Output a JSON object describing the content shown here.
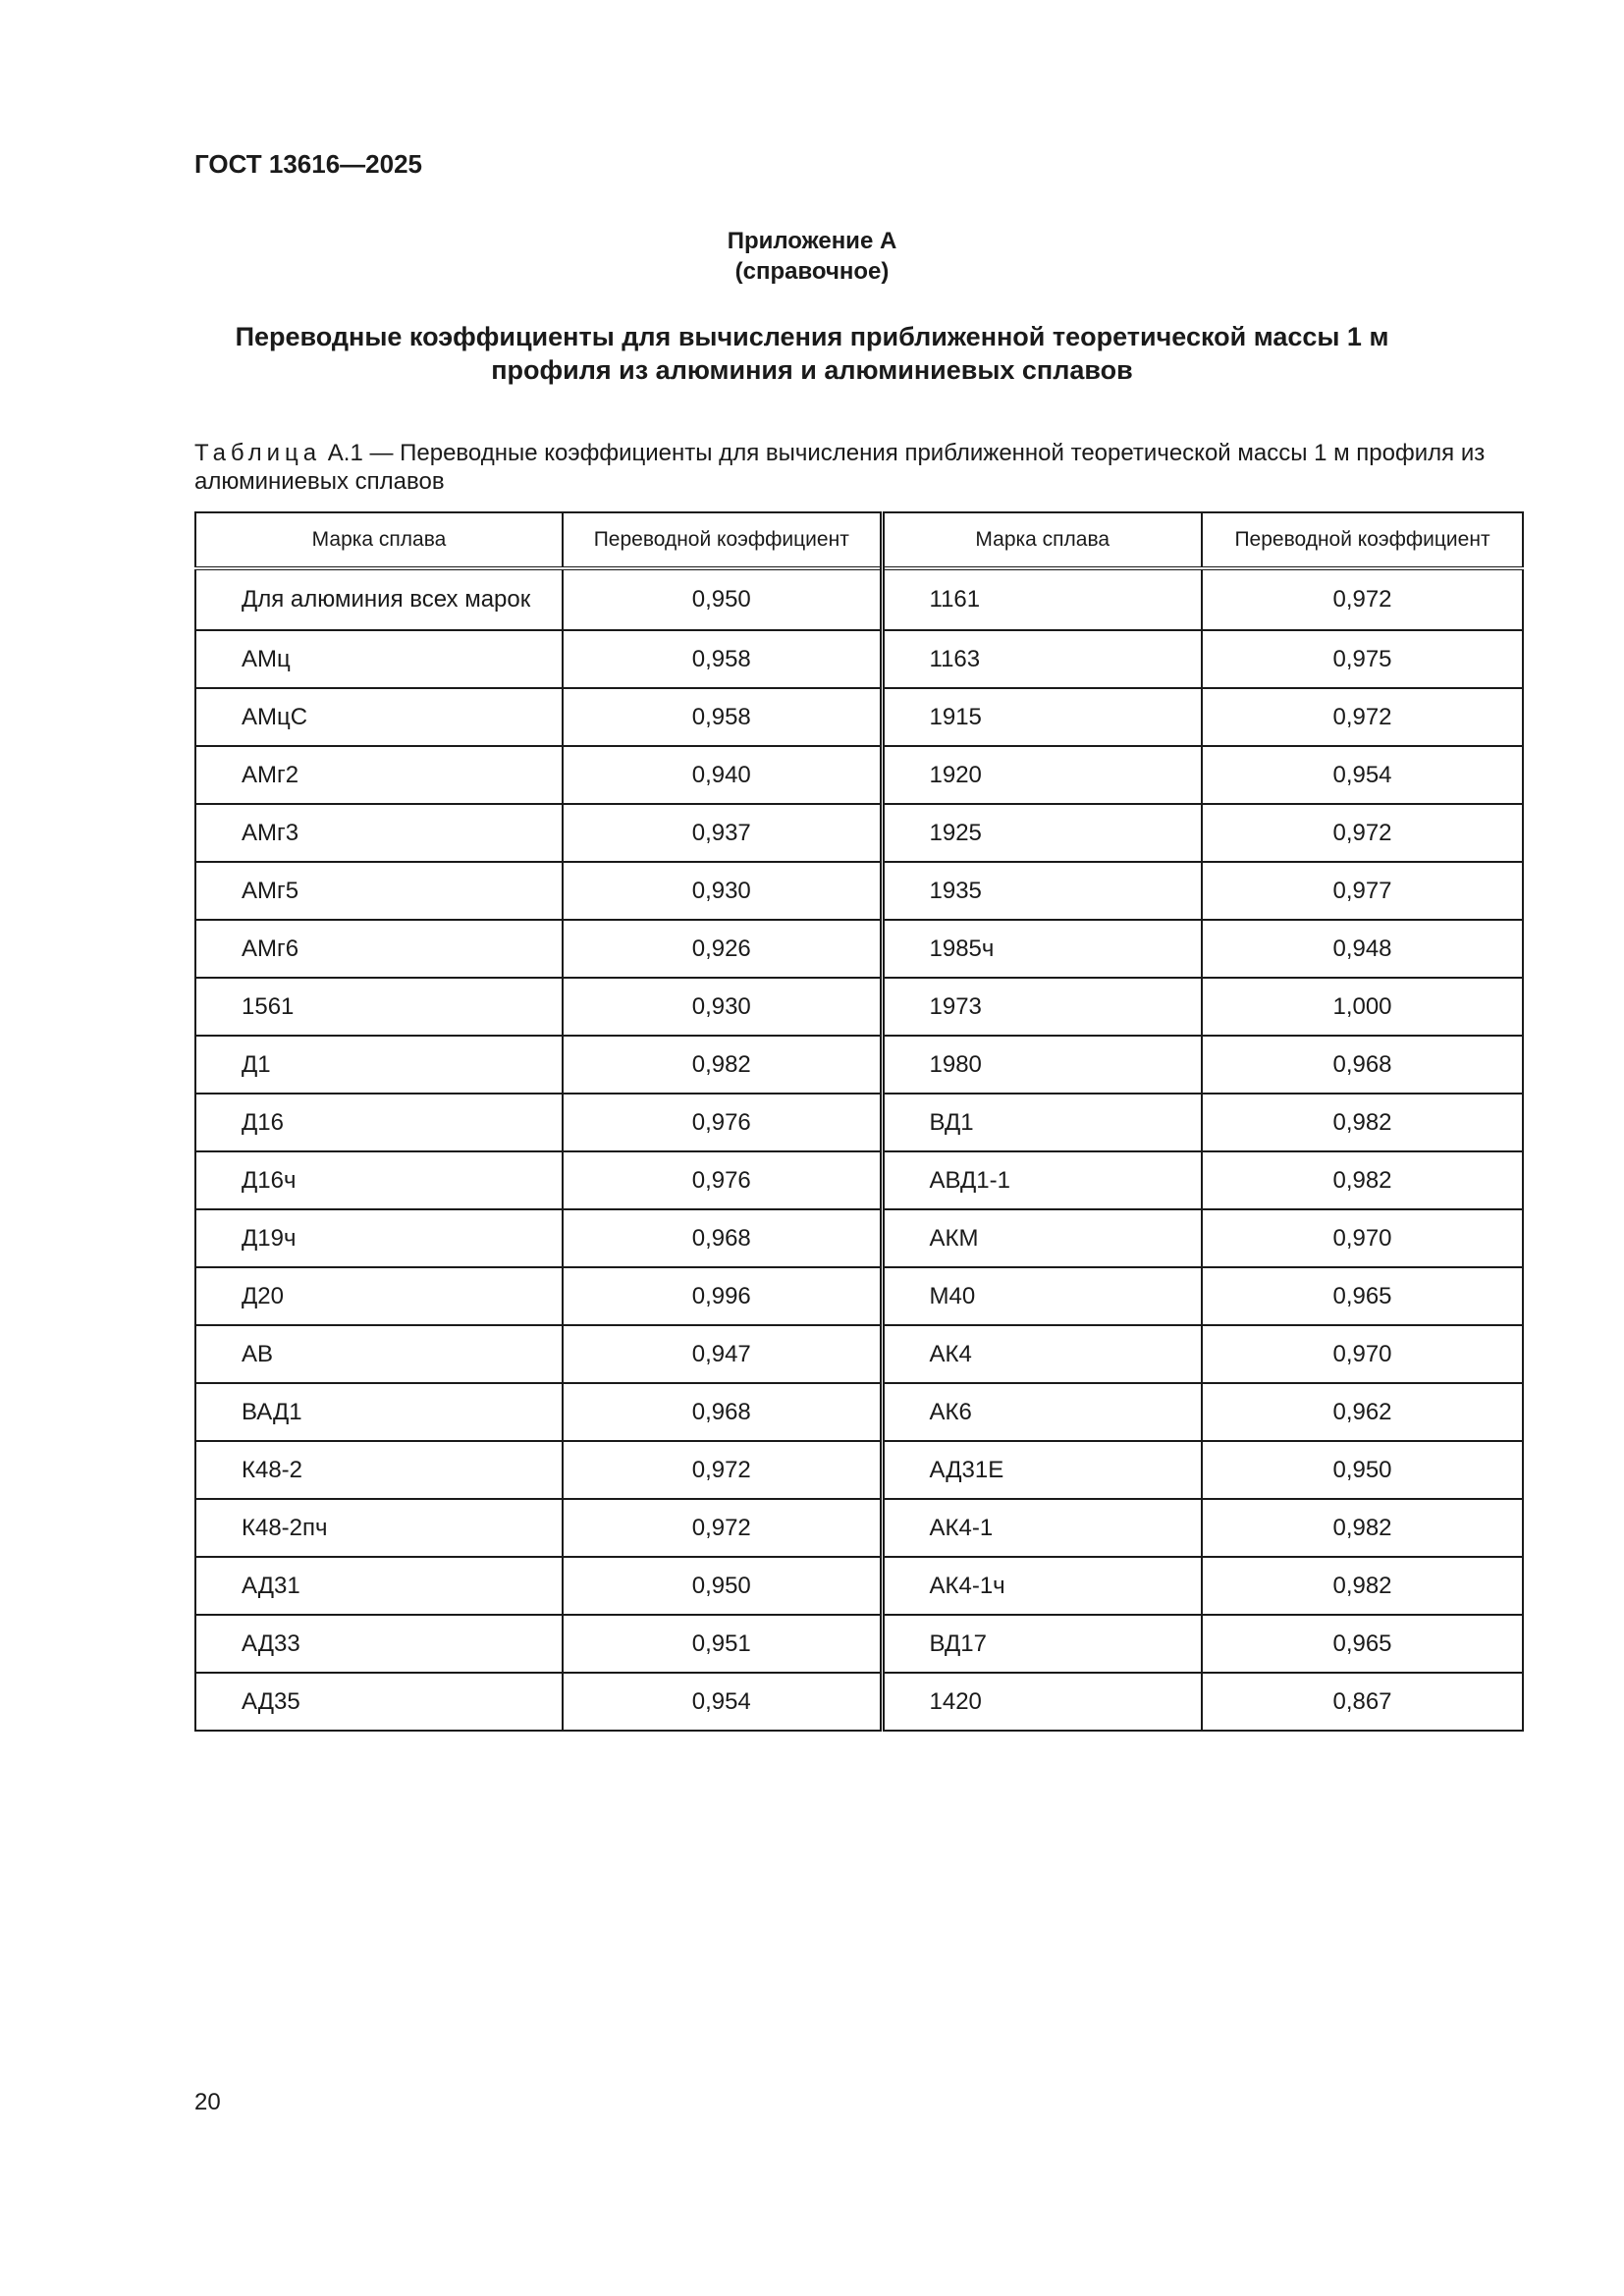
{
  "header": "ГОСТ 13616—2025",
  "appendix": "Приложение А",
  "appendix_type": "(справочное)",
  "title_line1": "Переводные коэффициенты для вычисления приближенной теоретической массы 1 м",
  "title_line2": "профиля из алюминия и алюминиевых сплавов",
  "caption_prefix": "Таблица",
  "caption_text": "А.1 — Переводные коэффициенты для вычисления приближенной теоретической массы 1 м профиля из алюминиевых сплавов",
  "table": {
    "headers": [
      "Марка сплава",
      "Переводной коэффициент",
      "Марка сплава",
      "Переводной коэффициент"
    ],
    "rows": [
      [
        "Для алюминия всех марок",
        "0,950",
        "1161",
        "0,972"
      ],
      [
        "АМц",
        "0,958",
        "1163",
        "0,975"
      ],
      [
        "АМцС",
        "0,958",
        "1915",
        "0,972"
      ],
      [
        "АМг2",
        "0,940",
        "1920",
        "0,954"
      ],
      [
        "АМг3",
        "0,937",
        "1925",
        "0,972"
      ],
      [
        "АМг5",
        "0,930",
        "1935",
        "0,977"
      ],
      [
        "АМг6",
        "0,926",
        "1985ч",
        "0,948"
      ],
      [
        "1561",
        "0,930",
        "1973",
        "1,000"
      ],
      [
        "Д1",
        "0,982",
        "1980",
        "0,968"
      ],
      [
        "Д16",
        "0,976",
        "ВД1",
        "0,982"
      ],
      [
        "Д16ч",
        "0,976",
        "АВД1-1",
        "0,982"
      ],
      [
        "Д19ч",
        "0,968",
        "АКМ",
        "0,970"
      ],
      [
        "Д20",
        "0,996",
        "М40",
        "0,965"
      ],
      [
        "АВ",
        "0,947",
        "АК4",
        "0,970"
      ],
      [
        "ВАД1",
        "0,968",
        "АК6",
        "0,962"
      ],
      [
        "К48-2",
        "0,972",
        "АД31Е",
        "0,950"
      ],
      [
        "К48-2пч",
        "0,972",
        "АК4-1",
        "0,982"
      ],
      [
        "АД31",
        "0,950",
        "АК4-1ч",
        "0,982"
      ],
      [
        "АД33",
        "0,951",
        "ВД17",
        "0,965"
      ],
      [
        "АД35",
        "0,954",
        "1420",
        "0,867"
      ]
    ]
  },
  "page_number": "20"
}
